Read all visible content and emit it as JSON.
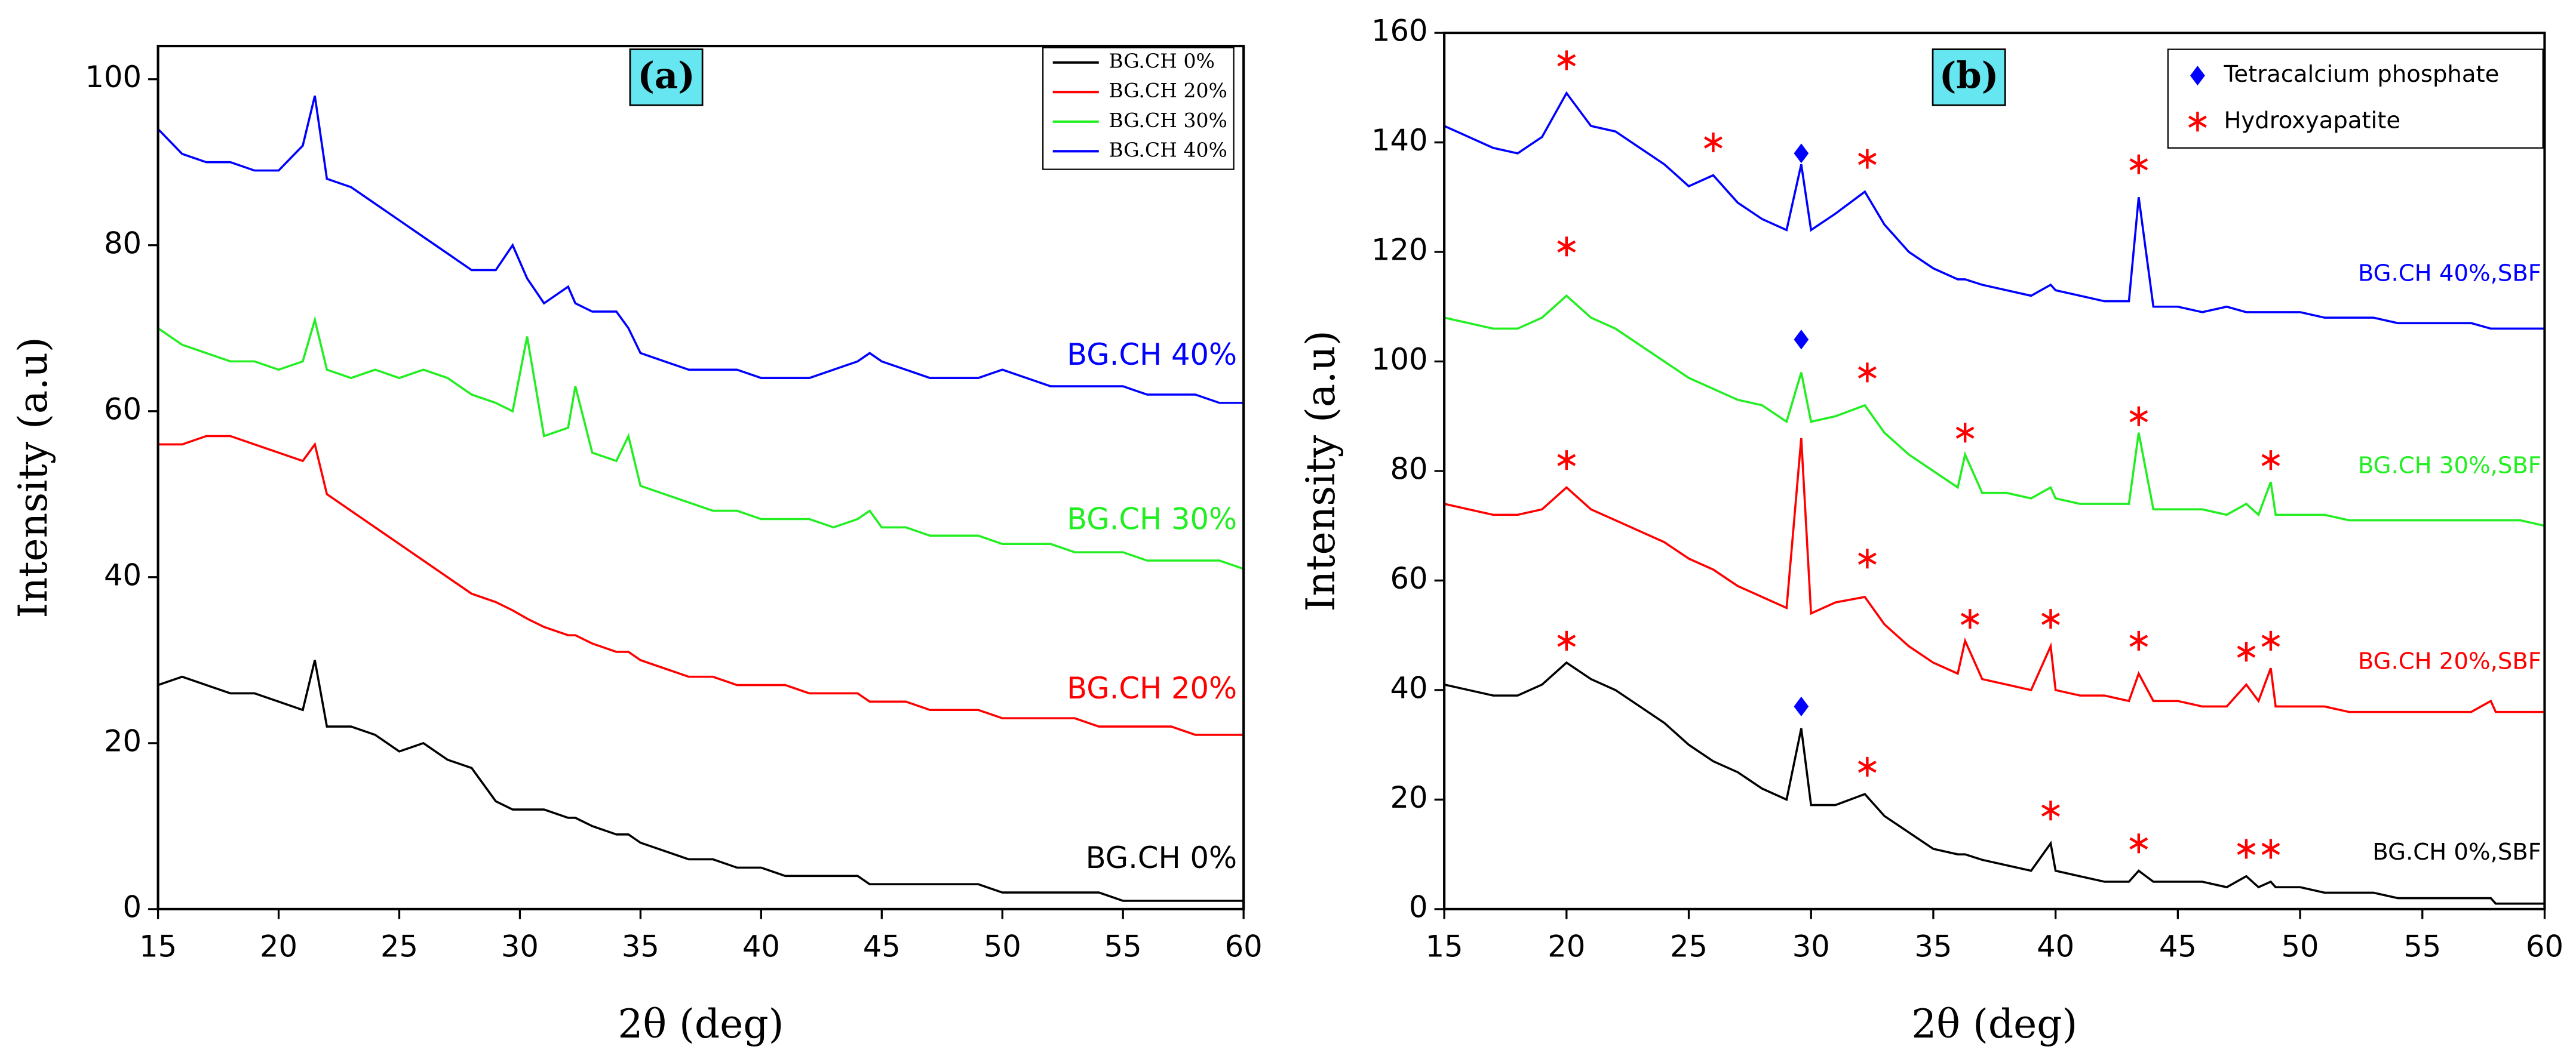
{
  "chart_data": [
    {
      "type": "line",
      "panel_label": "(a)",
      "x_label": "2θ (deg)",
      "y_label": "Intensity (a.u)",
      "xlim": [
        15,
        60
      ],
      "ylim": [
        0,
        104
      ],
      "xticks": [
        15,
        20,
        25,
        30,
        35,
        40,
        45,
        50,
        55,
        60
      ],
      "yticks": [
        0,
        20,
        40,
        60,
        80,
        100
      ],
      "legend": "upper right",
      "legend_source": "series",
      "x": [
        15,
        16,
        17,
        18,
        19,
        20,
        21,
        21.5,
        22,
        23,
        24,
        25,
        26,
        27,
        28,
        29,
        29.7,
        30.3,
        31,
        32,
        32.3,
        33,
        34,
        34.5,
        35,
        36,
        37,
        38,
        39,
        40,
        41,
        42,
        43,
        44,
        44.5,
        45,
        46,
        47,
        48,
        49,
        50,
        51,
        52,
        53,
        54,
        55,
        56,
        57,
        58,
        59,
        60
      ],
      "series": [
        {
          "name": "BG.CH 0%",
          "color": "#000000",
          "values": [
            27,
            28,
            27,
            26,
            26,
            25,
            24,
            30,
            22,
            22,
            21,
            19,
            20,
            18,
            17,
            13,
            12,
            12,
            12,
            11,
            11,
            10,
            9,
            9,
            8,
            7,
            6,
            6,
            5,
            5,
            4,
            4,
            4,
            4,
            3,
            3,
            3,
            3,
            3,
            3,
            2,
            2,
            2,
            2,
            2,
            1,
            1,
            1,
            1,
            1,
            1
          ]
        },
        {
          "name": "BG.CH 20%",
          "color": "#ff0000",
          "values": [
            56,
            56,
            57,
            57,
            56,
            55,
            54,
            56,
            50,
            48,
            46,
            44,
            42,
            40,
            38,
            37,
            36,
            35,
            34,
            33,
            33,
            32,
            31,
            31,
            30,
            29,
            28,
            28,
            27,
            27,
            27,
            26,
            26,
            26,
            25,
            25,
            25,
            24,
            24,
            24,
            23,
            23,
            23,
            23,
            22,
            22,
            22,
            22,
            21,
            21,
            21
          ]
        },
        {
          "name": "BG.CH 30%",
          "color": "#22ee22",
          "values": [
            70,
            68,
            67,
            66,
            66,
            65,
            66,
            71,
            65,
            64,
            65,
            64,
            65,
            64,
            62,
            61,
            60,
            69,
            57,
            58,
            63,
            55,
            54,
            57,
            51,
            50,
            49,
            48,
            48,
            47,
            47,
            47,
            46,
            47,
            48,
            46,
            46,
            45,
            45,
            45,
            44,
            44,
            44,
            43,
            43,
            43,
            42,
            42,
            42,
            42,
            41
          ]
        },
        {
          "name": "BG.CH 40%",
          "color": "#0000ff",
          "values": [
            94,
            91,
            90,
            90,
            89,
            89,
            92,
            98,
            88,
            87,
            85,
            83,
            81,
            79,
            77,
            77,
            80,
            76,
            73,
            75,
            73,
            72,
            72,
            70,
            67,
            66,
            65,
            65,
            65,
            64,
            64,
            64,
            65,
            66,
            67,
            66,
            65,
            64,
            64,
            64,
            65,
            64,
            63,
            63,
            63,
            63,
            62,
            62,
            62,
            61,
            61
          ]
        }
      ]
    },
    {
      "type": "line",
      "panel_label": "(b)",
      "x_label": "2θ (deg)",
      "y_label": "Intensity (a.u)",
      "xlim": [
        15,
        60
      ],
      "ylim": [
        0,
        160
      ],
      "xticks": [
        15,
        20,
        25,
        30,
        35,
        40,
        45,
        50,
        55,
        60
      ],
      "yticks": [
        0,
        20,
        40,
        60,
        80,
        100,
        120,
        140,
        160
      ],
      "legend": "upper right",
      "legend_source": "markers",
      "x": [
        15,
        16,
        17,
        18,
        19,
        20,
        21,
        22,
        23,
        24,
        25,
        26,
        27,
        28,
        29,
        29.6,
        30,
        31,
        32.2,
        33,
        34,
        35,
        36,
        36.3,
        37,
        38,
        39,
        39.8,
        40,
        41,
        42,
        43,
        43.4,
        44,
        45,
        46,
        47,
        47.8,
        48.3,
        48.8,
        49,
        50,
        51,
        52,
        53,
        54,
        55,
        56,
        57,
        57.8,
        58,
        59,
        60
      ],
      "series": [
        {
          "name": "BG.CH 0%,SBF",
          "color": "#000000",
          "values": [
            41,
            40,
            39,
            39,
            41,
            45,
            42,
            40,
            37,
            34,
            30,
            27,
            25,
            22,
            20,
            33,
            19,
            19,
            21,
            17,
            14,
            11,
            10,
            10,
            9,
            8,
            7,
            12,
            7,
            6,
            5,
            5,
            7,
            5,
            5,
            5,
            4,
            6,
            4,
            5,
            4,
            4,
            3,
            3,
            3,
            2,
            2,
            2,
            2,
            2,
            1,
            1,
            1
          ]
        },
        {
          "name": "BG.CH 20%,SBF",
          "color": "#ff0000",
          "values": [
            74,
            73,
            72,
            72,
            73,
            77,
            73,
            71,
            69,
            67,
            64,
            62,
            59,
            57,
            55,
            86,
            54,
            56,
            57,
            52,
            48,
            45,
            43,
            49,
            42,
            41,
            40,
            48,
            40,
            39,
            39,
            38,
            43,
            38,
            38,
            37,
            37,
            41,
            38,
            44,
            37,
            37,
            37,
            36,
            36,
            36,
            36,
            36,
            36,
            38,
            36,
            36,
            36
          ]
        },
        {
          "name": "BG.CH 30%,SBF",
          "color": "#22ee22",
          "values": [
            108,
            107,
            106,
            106,
            108,
            112,
            108,
            106,
            103,
            100,
            97,
            95,
            93,
            92,
            89,
            98,
            89,
            90,
            92,
            87,
            83,
            80,
            77,
            83,
            76,
            76,
            75,
            77,
            75,
            74,
            74,
            74,
            87,
            73,
            73,
            73,
            72,
            74,
            72,
            78,
            72,
            72,
            72,
            71,
            71,
            71,
            71,
            71,
            71,
            71,
            71,
            71,
            70
          ]
        },
        {
          "name": "BG.CH 40%,SBF",
          "color": "#0000ff",
          "values": [
            143,
            141,
            139,
            138,
            141,
            149,
            143,
            142,
            139,
            136,
            132,
            134,
            129,
            126,
            124,
            136,
            124,
            127,
            131,
            125,
            120,
            117,
            115,
            115,
            114,
            113,
            112,
            114,
            113,
            112,
            111,
            111,
            130,
            110,
            110,
            109,
            110,
            109,
            109,
            109,
            109,
            109,
            108,
            108,
            108,
            107,
            107,
            107,
            107,
            106,
            106,
            106,
            106
          ]
        }
      ],
      "markers": [
        {
          "name": "Tetracalcium phosphate",
          "color": "#0000ff",
          "symbol": "diamond",
          "x": [
            29.6,
            29.6,
            29.6
          ],
          "y": [
            138,
            104,
            37
          ]
        },
        {
          "name": "Hydroxyapatite",
          "color": "#ff0000",
          "symbol": "asterisk",
          "x": [
            20,
            26,
            32.3,
            43.4,
            20,
            32.3,
            36.3,
            43.4,
            48.8,
            20,
            32.3,
            36.5,
            39.8,
            43.4,
            47.8,
            48.8,
            20,
            32.3,
            39.8,
            43.4,
            47.8,
            48.8
          ],
          "y": [
            155,
            140,
            137,
            136,
            121,
            98,
            87,
            90,
            82,
            82,
            64,
            53,
            53,
            49,
            47,
            49,
            49,
            26,
            18,
            12,
            11,
            11
          ]
        }
      ]
    }
  ]
}
